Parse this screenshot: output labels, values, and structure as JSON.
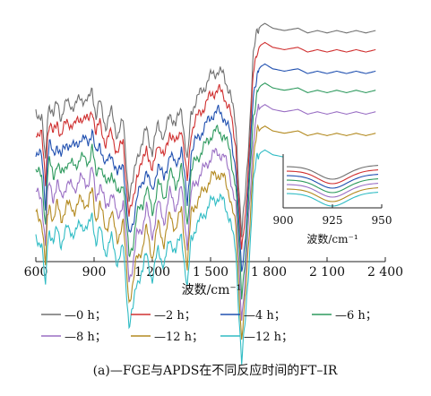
{
  "chart_data": [
    {
      "type": "line",
      "xlabel": "波数/cm⁻¹",
      "ylabel": "",
      "xlim": [
        600,
        2400
      ],
      "x_ticks": [
        "600",
        "900",
        "1 200",
        "1 500",
        "1 800",
        "2 100",
        "2 400"
      ],
      "x_tick_values": [
        600,
        900,
        1200,
        1500,
        1800,
        2100,
        2400
      ],
      "y_ticks_shown": false,
      "caption": "(a)—FGE与APDS在不同反应时间的FT–IR",
      "x": [
        600,
        630,
        650,
        660,
        670,
        690,
        710,
        730,
        760,
        800,
        830,
        870,
        890,
        910,
        930,
        960,
        990,
        1020,
        1050,
        1080,
        1100,
        1120,
        1150,
        1170,
        1200,
        1230,
        1260,
        1290,
        1320,
        1350,
        1380,
        1400,
        1420,
        1450,
        1480,
        1510,
        1540,
        1570,
        1600,
        1630,
        1660,
        1680,
        1700,
        1720,
        1740,
        1760,
        1780,
        1820,
        1880,
        1950,
        2000,
        2050,
        2100,
        2150,
        2200,
        2250,
        2300,
        2350
      ],
      "base_profile": [
        0.62,
        0.6,
        0.4,
        0.6,
        0.66,
        0.6,
        0.66,
        0.6,
        0.66,
        0.64,
        0.68,
        0.66,
        0.72,
        0.6,
        0.66,
        0.56,
        0.62,
        0.52,
        0.58,
        0.26,
        0.32,
        0.44,
        0.48,
        0.56,
        0.44,
        0.58,
        0.5,
        0.62,
        0.56,
        0.64,
        0.4,
        0.62,
        0.66,
        0.7,
        0.74,
        0.78,
        0.79,
        0.77,
        0.7,
        0.56,
        0.1,
        0.28,
        0.55,
        0.85,
        0.96,
        0.98,
        0.99,
        0.97,
        0.96,
        0.97,
        0.95,
        0.96,
        0.95,
        0.96,
        0.95,
        0.96,
        0.95,
        0.96
      ],
      "series": [
        {
          "name": "0 h",
          "color": "#707070",
          "offset": 0.0
        },
        {
          "name": "2 h",
          "color": "#d03030",
          "offset": -0.08
        },
        {
          "name": "4 h",
          "color": "#2050b0",
          "offset": -0.17
        },
        {
          "name": "6 h",
          "color": "#2e9a5e",
          "offset": -0.25
        },
        {
          "name": "8 h",
          "color": "#9a6fc4",
          "offset": -0.34
        },
        {
          "name": "12 h",
          "color": "#b38a20",
          "offset": -0.43
        },
        {
          "name": "12 h",
          "color": "#30bcc4",
          "offset": -0.53
        }
      ],
      "inset": {
        "x_ticks": [
          "900",
          "925",
          "950"
        ],
        "x_tick_values": [
          900,
          925,
          950
        ],
        "xlabel": "波数/cm⁻¹",
        "xlim": [
          900,
          950
        ]
      }
    }
  ]
}
